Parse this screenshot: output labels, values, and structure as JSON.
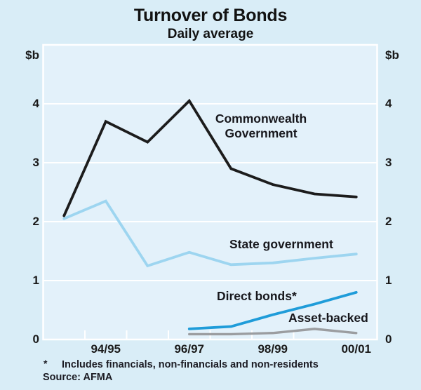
{
  "page": {
    "background": "#d9edf7",
    "plot_background": "#e3f1fa",
    "frame_color": "#ffffff",
    "text_color": "#1a1a1a"
  },
  "header": {
    "title": "Turnover of Bonds",
    "subtitle": "Daily average"
  },
  "axes": {
    "unit_left": "$b",
    "unit_right": "$b",
    "y_tick_labels": [
      4,
      3,
      2,
      1,
      0
    ],
    "x_tick_labels": [
      "94/95",
      "96/97",
      "98/99",
      "00/01"
    ]
  },
  "annotations": {
    "commonwealth_line1": "Commonwealth",
    "commonwealth_line2": "Government",
    "state": "State government",
    "direct": "Direct bonds*",
    "asset": "Asset-backed"
  },
  "footnotes": {
    "marker": "*",
    "note": "Includes financials, non-financials and non-residents",
    "source": "Source: AFMA"
  },
  "chart_data": {
    "type": "line",
    "title": "Turnover of Bonds",
    "subtitle": "Daily average",
    "ylabel": "$b",
    "ylim": [
      0,
      5
    ],
    "y_gridlines": [
      1,
      2,
      3,
      4
    ],
    "grid_color": "#ffffff",
    "legend_position": "none",
    "x_categories": [
      "93/94",
      "94/95",
      "95/96",
      "96/97",
      "97/98",
      "98/99",
      "99/00",
      "00/01"
    ],
    "x_axis_labeled_categories": [
      "94/95",
      "96/97",
      "98/99",
      "00/01"
    ],
    "series": [
      {
        "name": "State government",
        "color": "#9dd5f0",
        "width": 3.8,
        "values": [
          2.05,
          2.35,
          1.25,
          1.48,
          1.27,
          1.3,
          1.38,
          1.45
        ]
      },
      {
        "name": "Commonwealth Government",
        "color": "#1c1c1c",
        "width": 3.8,
        "values": [
          2.1,
          3.7,
          3.35,
          4.05,
          2.9,
          2.63,
          2.47,
          2.42
        ]
      },
      {
        "name": "Asset-backed",
        "color": "#9b9da0",
        "width": 3.4,
        "values": [
          null,
          null,
          null,
          0.09,
          0.09,
          0.11,
          0.18,
          0.11
        ]
      },
      {
        "name": "Direct bonds*",
        "color": "#1f9cd9",
        "width": 3.8,
        "values": [
          null,
          null,
          null,
          0.18,
          0.22,
          0.42,
          0.6,
          0.8
        ]
      }
    ]
  }
}
